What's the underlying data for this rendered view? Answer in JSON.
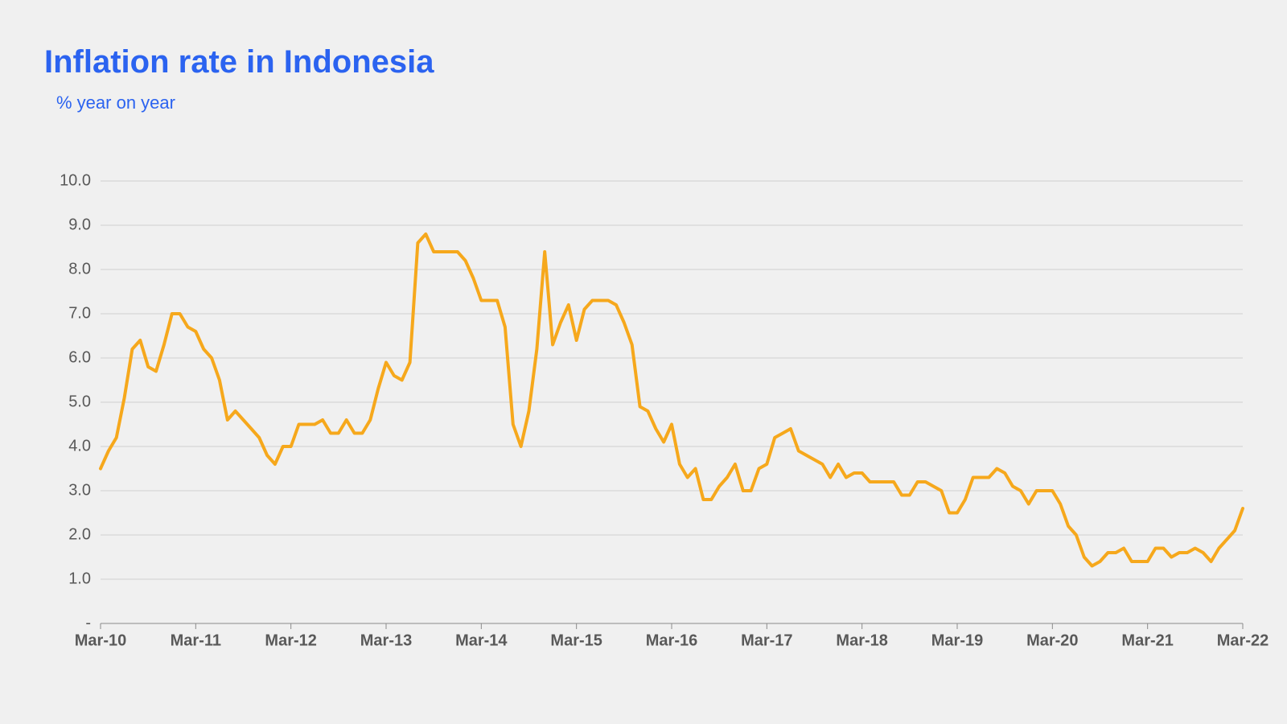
{
  "title": "Inflation rate in Indonesia",
  "subtitle": "% year on year",
  "chart": {
    "type": "line",
    "background_color": "#f0f0f0",
    "grid_color": "#cfcfcf",
    "axis_color": "#8a8a8a",
    "tick_label_color": "#595959",
    "title_color": "#2b63f0",
    "subtitle_color": "#2b63f0",
    "title_fontsize": 40,
    "subtitle_fontsize": 22,
    "y_tick_fontsize": 20,
    "x_tick_fontsize": 20,
    "x_tick_fontweight": "bold",
    "line_color": "#f6a81c",
    "line_width": 4,
    "ylim": [
      0,
      10
    ],
    "y_ticks": [
      {
        "v": 0,
        "label": "-"
      },
      {
        "v": 1,
        "label": "1.0"
      },
      {
        "v": 2,
        "label": "2.0"
      },
      {
        "v": 3,
        "label": "3.0"
      },
      {
        "v": 4,
        "label": "4.0"
      },
      {
        "v": 5,
        "label": "5.0"
      },
      {
        "v": 6,
        "label": "6.0"
      },
      {
        "v": 7,
        "label": "7.0"
      },
      {
        "v": 8,
        "label": "8.0"
      },
      {
        "v": 9,
        "label": "9.0"
      },
      {
        "v": 10,
        "label": "10.0"
      }
    ],
    "x_ticks": [
      {
        "i": 0,
        "label": "Mar-10"
      },
      {
        "i": 12,
        "label": "Mar-11"
      },
      {
        "i": 24,
        "label": "Mar-12"
      },
      {
        "i": 36,
        "label": "Mar-13"
      },
      {
        "i": 48,
        "label": "Mar-14"
      },
      {
        "i": 60,
        "label": "Mar-15"
      },
      {
        "i": 72,
        "label": "Mar-16"
      },
      {
        "i": 84,
        "label": "Mar-17"
      },
      {
        "i": 96,
        "label": "Mar-18"
      },
      {
        "i": 108,
        "label": "Mar-19"
      },
      {
        "i": 120,
        "label": "Mar-20"
      },
      {
        "i": 132,
        "label": "Mar-21"
      },
      {
        "i": 144,
        "label": "Mar-22"
      }
    ],
    "n_points": 145,
    "values": [
      3.5,
      3.9,
      4.2,
      5.1,
      6.2,
      6.4,
      5.8,
      5.7,
      6.3,
      7.0,
      7.0,
      6.7,
      6.6,
      6.2,
      6.0,
      5.5,
      4.6,
      4.8,
      4.6,
      4.4,
      4.2,
      3.8,
      3.6,
      4.0,
      4.0,
      4.5,
      4.5,
      4.5,
      4.6,
      4.3,
      4.3,
      4.6,
      4.3,
      4.3,
      4.6,
      5.3,
      5.9,
      5.6,
      5.5,
      5.9,
      8.6,
      8.8,
      8.4,
      8.4,
      8.4,
      8.4,
      8.2,
      7.8,
      7.3,
      7.3,
      7.3,
      6.7,
      4.5,
      4.0,
      4.8,
      6.2,
      8.4,
      6.3,
      6.8,
      7.2,
      6.4,
      7.1,
      7.3,
      7.3,
      7.3,
      7.2,
      6.8,
      6.3,
      4.9,
      4.8,
      4.4,
      4.1,
      4.5,
      3.6,
      3.3,
      3.5,
      2.8,
      2.8,
      3.1,
      3.3,
      3.6,
      3.0,
      3.0,
      3.5,
      3.6,
      4.2,
      4.3,
      4.4,
      3.9,
      3.8,
      3.7,
      3.6,
      3.3,
      3.6,
      3.3,
      3.4,
      3.4,
      3.2,
      3.2,
      3.2,
      3.2,
      2.9,
      2.9,
      3.2,
      3.2,
      3.1,
      3.0,
      2.5,
      2.5,
      2.8,
      3.3,
      3.3,
      3.3,
      3.5,
      3.4,
      3.1,
      3.0,
      2.7,
      3.0,
      3.0,
      3.0,
      2.7,
      2.2,
      2.0,
      1.5,
      1.3,
      1.4,
      1.6,
      1.6,
      1.7,
      1.4,
      1.4,
      1.4,
      1.7,
      1.7,
      1.5,
      1.6,
      1.6,
      1.7,
      1.6,
      1.4,
      1.7,
      1.9,
      2.1,
      2.6
    ]
  }
}
